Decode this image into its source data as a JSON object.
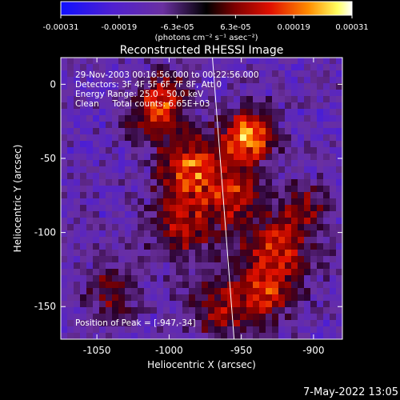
{
  "chart_data": {
    "type": "heatmap",
    "title": "Reconstructed RHESSI Image",
    "xlabel": "Heliocentric X (arcsec)",
    "ylabel": "Heliocentric Y (arcsec)",
    "xlim": [
      -1075,
      -880
    ],
    "ylim": [
      -172,
      18
    ],
    "xticks": [
      -1050,
      -1000,
      -950,
      -900
    ],
    "yticks": [
      0,
      -50,
      -100,
      -150
    ],
    "annotations": {
      "time": "29-Nov-2003 00:16:56.000 to 00:22:56.000",
      "detectors": "Detectors: 3F 4F 5F 6F 7F 8F, Att 0",
      "energy": "Energy Range: 25.0 - 50.0 keV",
      "clean": "Clean     Total counts: 6.65E+03",
      "peak": "Position of Peak = [-947,-34]"
    },
    "colorbar": {
      "ticks": [
        "-0.00031",
        "-0.00019",
        "-6.3e-05",
        "6.3e-05",
        "0.00019",
        "0.00031"
      ],
      "range": [
        -0.00031,
        0.00031
      ],
      "label": "(photons cm⁻² s⁻¹ asec⁻²)"
    },
    "limb_line": [
      [
        -970,
        18
      ],
      [
        -955,
        -172
      ]
    ],
    "colors": {
      "background": "#000000",
      "axis": "#ffffff"
    }
  },
  "footer": {
    "date": "7-May-2022 13:05"
  }
}
